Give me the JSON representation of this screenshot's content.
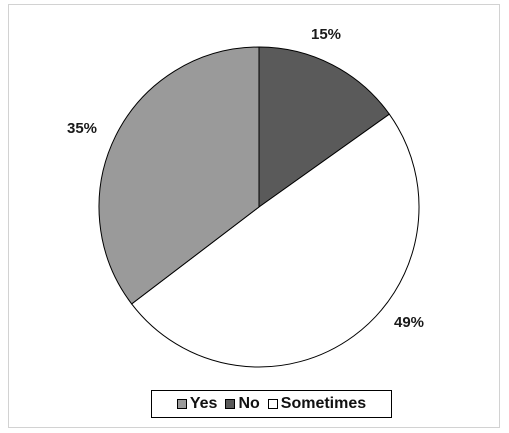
{
  "chart_data": {
    "type": "pie",
    "slices": [
      {
        "name": "No",
        "value": 15,
        "label": "15%",
        "color": "#5a5a5a"
      },
      {
        "name": "Sometimes",
        "value": 49,
        "label": "49%",
        "color": "#ffffff"
      },
      {
        "name": "Yes",
        "value": 35,
        "label": "35%",
        "color": "#9a9a9a"
      }
    ],
    "start": "12 o'clock",
    "direction": "clockwise",
    "legend": {
      "position": "bottom",
      "entries": [
        {
          "name": "Yes",
          "color": "#9a9a9a"
        },
        {
          "name": "No",
          "color": "#5a5a5a"
        },
        {
          "name": "Sometimes",
          "color": "#ffffff"
        }
      ]
    },
    "title": ""
  }
}
